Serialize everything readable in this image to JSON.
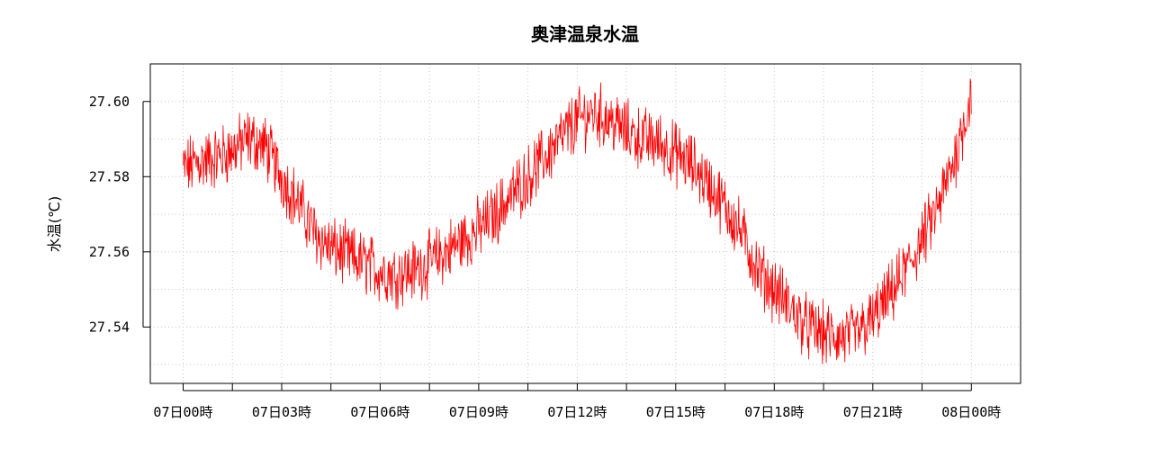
{
  "chart_data": {
    "type": "line",
    "title": "奥津温泉水温",
    "xlabel": "",
    "ylabel": "水温(℃)",
    "x_tick_labels": [
      "07日00時",
      "07日03時",
      "07日06時",
      "07日09時",
      "07日12時",
      "07日15時",
      "07日18時",
      "07日21時",
      "08日00時"
    ],
    "x_range_hours": [
      -1,
      25.5
    ],
    "y_tick_labels": [
      "27.54",
      "27.56",
      "27.58",
      "27.60"
    ],
    "y_ticks": [
      27.54,
      27.56,
      27.58,
      27.6
    ],
    "ylim": [
      27.525,
      27.61
    ],
    "grid": true,
    "series": [
      {
        "color": "#ff0000",
        "x_hours": [
          0,
          0.5,
          1,
          1.5,
          2,
          2.5,
          3,
          3.5,
          4,
          4.5,
          5,
          5.5,
          6,
          6.5,
          7,
          7.5,
          8,
          8.5,
          9,
          9.5,
          10,
          10.5,
          11,
          11.5,
          12,
          12.5,
          13,
          13.5,
          14,
          14.5,
          15,
          15.5,
          16,
          16.5,
          17,
          17.5,
          18,
          18.5,
          19,
          19.5,
          20,
          20.5,
          21,
          21.5,
          22,
          22.5,
          23,
          23.5,
          24
        ],
        "values": [
          27.582,
          27.584,
          27.585,
          27.587,
          27.59,
          27.588,
          27.58,
          27.573,
          27.565,
          27.561,
          27.559,
          27.557,
          27.555,
          27.554,
          27.555,
          27.557,
          27.56,
          27.563,
          27.566,
          27.57,
          27.575,
          27.58,
          27.585,
          27.59,
          27.595,
          27.597,
          27.595,
          27.592,
          27.59,
          27.589,
          27.586,
          27.583,
          27.578,
          27.572,
          27.565,
          27.555,
          27.55,
          27.545,
          27.54,
          27.538,
          27.537,
          27.538,
          27.542,
          27.548,
          27.555,
          27.563,
          27.572,
          27.585,
          27.602
        ]
      }
    ]
  }
}
